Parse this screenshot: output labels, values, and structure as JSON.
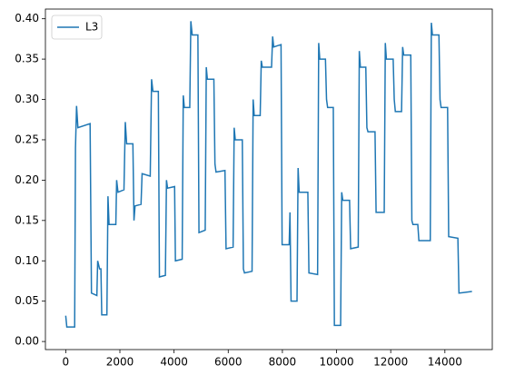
{
  "chart_data": {
    "type": "line",
    "x": [
      0,
      40,
      330,
      360,
      400,
      450,
      900,
      950,
      1150,
      1180,
      1250,
      1300,
      1330,
      1520,
      1560,
      1600,
      1850,
      1880,
      1930,
      2150,
      2200,
      2250,
      2480,
      2520,
      2560,
      2780,
      2820,
      3120,
      3170,
      3220,
      3420,
      3460,
      3680,
      3720,
      3760,
      4020,
      4050,
      4300,
      4340,
      4380,
      4580,
      4620,
      4670,
      4880,
      4920,
      5150,
      5190,
      5230,
      5470,
      5510,
      5550,
      5880,
      5920,
      6180,
      6220,
      6260,
      6520,
      6560,
      6600,
      6880,
      6920,
      6960,
      7180,
      7220,
      7260,
      7600,
      7640,
      7680,
      7950,
      7990,
      8250,
      8280,
      8320,
      8540,
      8580,
      8620,
      8940,
      8980,
      9300,
      9340,
      9380,
      9590,
      9630,
      9670,
      9880,
      9920,
      10150,
      10190,
      10230,
      10480,
      10520,
      10800,
      10840,
      10880,
      11080,
      11120,
      11160,
      11420,
      11460,
      11760,
      11800,
      11840,
      12090,
      12130,
      12170,
      12400,
      12440,
      12480,
      12740,
      12780,
      12820,
      13000,
      13040,
      13460,
      13500,
      13540,
      13780,
      13820,
      13860,
      14100,
      14140,
      14480,
      14520,
      15000
    ],
    "series": [
      {
        "name": "L3",
        "color": "#1f77b4",
        "values": [
          0.032,
          0.018,
          0.018,
          0.24,
          0.292,
          0.265,
          0.27,
          0.06,
          0.057,
          0.1,
          0.09,
          0.09,
          0.033,
          0.033,
          0.18,
          0.145,
          0.145,
          0.2,
          0.185,
          0.188,
          0.272,
          0.245,
          0.245,
          0.15,
          0.168,
          0.17,
          0.208,
          0.205,
          0.325,
          0.31,
          0.31,
          0.08,
          0.082,
          0.2,
          0.19,
          0.192,
          0.1,
          0.102,
          0.305,
          0.29,
          0.29,
          0.397,
          0.38,
          0.38,
          0.135,
          0.138,
          0.34,
          0.325,
          0.325,
          0.22,
          0.21,
          0.212,
          0.115,
          0.117,
          0.265,
          0.25,
          0.25,
          0.09,
          0.085,
          0.087,
          0.3,
          0.28,
          0.28,
          0.348,
          0.34,
          0.34,
          0.378,
          0.365,
          0.368,
          0.12,
          0.12,
          0.16,
          0.05,
          0.05,
          0.215,
          0.185,
          0.185,
          0.085,
          0.083,
          0.37,
          0.35,
          0.35,
          0.3,
          0.29,
          0.29,
          0.02,
          0.02,
          0.185,
          0.175,
          0.175,
          0.115,
          0.117,
          0.36,
          0.34,
          0.34,
          0.265,
          0.26,
          0.26,
          0.16,
          0.16,
          0.37,
          0.35,
          0.35,
          0.3,
          0.285,
          0.285,
          0.365,
          0.355,
          0.355,
          0.15,
          0.145,
          0.145,
          0.125,
          0.125,
          0.395,
          0.38,
          0.38,
          0.3,
          0.29,
          0.29,
          0.13,
          0.128,
          0.06,
          0.062
        ]
      }
    ],
    "xlim": [
      -750,
      15750
    ],
    "xticks": [
      0,
      2000,
      4000,
      6000,
      8000,
      10000,
      12000,
      14000
    ],
    "ylim": [
      -0.01,
      0.412
    ],
    "yticks": [
      {
        "value": 0,
        "label": "0.00"
      },
      {
        "value": 0.05,
        "label": "0.05"
      },
      {
        "value": 0.1,
        "label": "0.10"
      },
      {
        "value": 0.15,
        "label": "0.15"
      },
      {
        "value": 0.2,
        "label": "0.20"
      },
      {
        "value": 0.25,
        "label": "0.25"
      },
      {
        "value": 0.3,
        "label": "0.30"
      },
      {
        "value": 0.35,
        "label": "0.35"
      },
      {
        "value": 0.4,
        "label": "0.40"
      }
    ],
    "legend": "upper left",
    "grid": false
  }
}
